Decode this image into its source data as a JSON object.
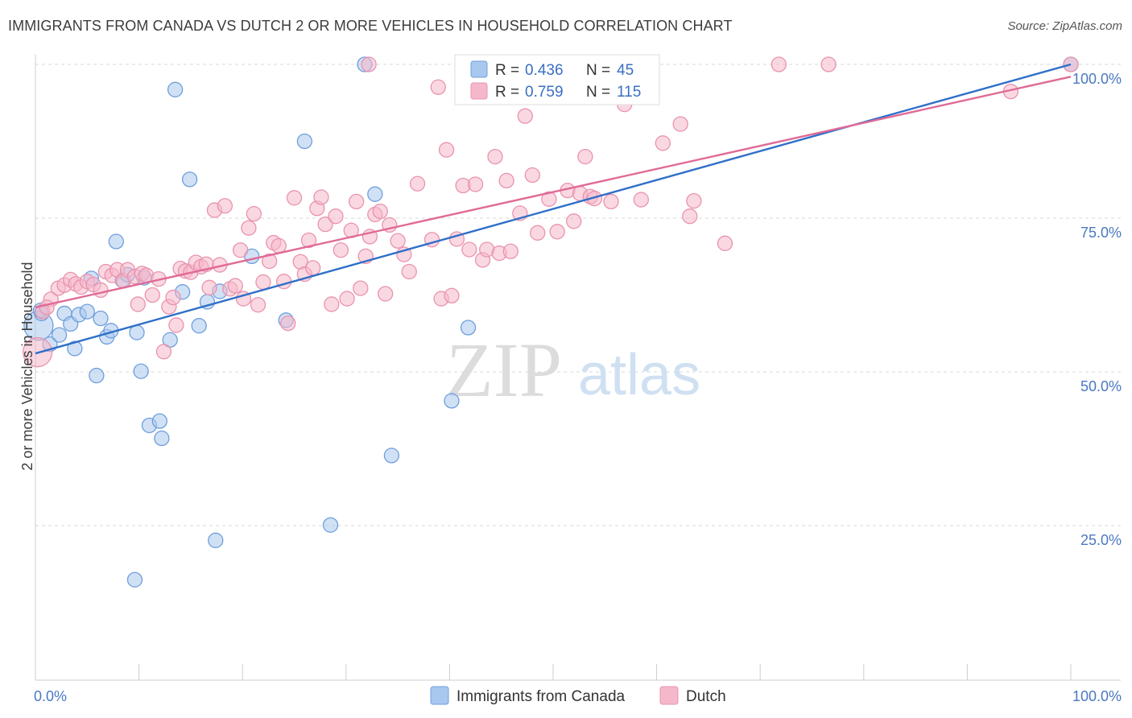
{
  "title": "IMMIGRANTS FROM CANADA VS DUTCH 2 OR MORE VEHICLES IN HOUSEHOLD CORRELATION CHART",
  "source": "Source: ZipAtlas.com",
  "watermark": {
    "zip": "ZIP",
    "atlas": "atlas"
  },
  "colors": {
    "series_a_fill": "#a9c8ef",
    "series_a_stroke": "#6f9fdc",
    "series_a_line": "#2f6fc8",
    "series_b_fill": "#f5b8cb",
    "series_b_stroke": "#e993ad",
    "series_b_line": "#e06a96",
    "grid": "#d8d8d8",
    "axis_label": "#4a78c2"
  },
  "legend": {
    "r_label": "R =",
    "n_label": "N =",
    "series": [
      {
        "r": "0.436",
        "n": "45"
      },
      {
        "r": "0.759",
        "n": "115"
      }
    ]
  },
  "chart_data": {
    "type": "scatter",
    "title": "IMMIGRANTS FROM CANADA VS DUTCH 2 OR MORE VEHICLES IN HOUSEHOLD CORRELATION CHART",
    "xlabel": "",
    "ylabel": "2 or more Vehicles in Household",
    "xlim": [
      0,
      100
    ],
    "ylim": [
      0,
      100
    ],
    "x_tick_labels": [
      "0.0%",
      "100.0%"
    ],
    "y_ticks": [
      25,
      50,
      75,
      100
    ],
    "y_tick_labels": [
      "25.0%",
      "50.0%",
      "75.0%",
      "100.0%"
    ],
    "grid": true,
    "legend_position": "top-center",
    "series": [
      {
        "name": "Immigrants from Canada",
        "r": 0.436,
        "n": 45,
        "trend": [
          [
            0,
            53
          ],
          [
            100,
            100
          ]
        ],
        "points": [
          [
            0.3,
            57.5,
            2
          ],
          [
            0.6,
            59.5,
            1
          ],
          [
            1.4,
            54.5,
            1
          ],
          [
            2.3,
            56,
            1
          ],
          [
            2.8,
            59.5,
            1
          ],
          [
            3.4,
            57.8,
            1
          ],
          [
            3.8,
            53.8,
            1
          ],
          [
            4.2,
            59.3,
            1
          ],
          [
            5.0,
            59.8,
            1
          ],
          [
            5.4,
            65.2,
            1
          ],
          [
            5.9,
            49.4,
            1
          ],
          [
            6.3,
            58.7,
            1
          ],
          [
            6.9,
            55.7,
            1
          ],
          [
            7.3,
            56.7,
            1
          ],
          [
            7.8,
            71.2,
            1
          ],
          [
            8.4,
            64.9,
            1
          ],
          [
            8.9,
            65.8,
            1
          ],
          [
            9.6,
            16.2,
            1
          ],
          [
            9.8,
            56.4,
            1
          ],
          [
            10.2,
            50.1,
            1
          ],
          [
            10.5,
            65.3,
            1
          ],
          [
            11.0,
            41.3,
            1
          ],
          [
            12.0,
            42.0,
            1
          ],
          [
            12.2,
            39.2,
            1
          ],
          [
            13.0,
            55.2,
            1
          ],
          [
            13.5,
            95.9,
            1
          ],
          [
            14.2,
            63.0,
            1
          ],
          [
            14.9,
            81.3,
            1
          ],
          [
            15.8,
            57.5,
            1
          ],
          [
            16.6,
            61.4,
            1
          ],
          [
            17.4,
            22.6,
            1
          ],
          [
            17.8,
            63.1,
            1
          ],
          [
            20.9,
            68.8,
            1
          ],
          [
            24.2,
            58.4,
            1
          ],
          [
            26.0,
            87.5,
            1
          ],
          [
            28.5,
            25.1,
            1
          ],
          [
            31.8,
            100.0,
            1
          ],
          [
            32.8,
            78.9,
            1
          ],
          [
            34.4,
            36.4,
            1
          ],
          [
            40.2,
            45.3,
            1
          ],
          [
            41.8,
            57.2,
            1
          ],
          [
            47.2,
            100.0,
            1
          ],
          [
            53.9,
            100.0,
            1
          ],
          [
            100.0,
            100.0,
            1
          ],
          [
            0.5,
            60.0,
            1
          ]
        ]
      },
      {
        "name": "Dutch",
        "r": 0.759,
        "n": 115,
        "trend": [
          [
            0,
            60.5
          ],
          [
            100,
            98
          ]
        ],
        "points": [
          [
            0.2,
            53.2,
            2
          ],
          [
            0.7,
            59.8,
            1
          ],
          [
            1.5,
            61.8,
            1
          ],
          [
            2.2,
            63.6,
            1
          ],
          [
            2.8,
            64.1,
            1
          ],
          [
            3.4,
            65.0,
            1
          ],
          [
            3.9,
            64.3,
            1
          ],
          [
            4.4,
            63.8,
            1
          ],
          [
            5.0,
            64.7,
            1
          ],
          [
            5.6,
            64.2,
            1
          ],
          [
            6.3,
            63.3,
            1
          ],
          [
            6.8,
            66.3,
            1
          ],
          [
            7.4,
            65.7,
            1
          ],
          [
            7.9,
            66.6,
            1
          ],
          [
            8.5,
            64.8,
            1
          ],
          [
            8.9,
            66.6,
            1
          ],
          [
            9.6,
            65.5,
            1
          ],
          [
            9.9,
            61.0,
            1
          ],
          [
            10.3,
            66.0,
            1
          ],
          [
            10.7,
            65.7,
            1
          ],
          [
            11.3,
            62.5,
            1
          ],
          [
            11.9,
            65.1,
            1
          ],
          [
            12.4,
            53.3,
            1
          ],
          [
            12.9,
            60.6,
            1
          ],
          [
            13.3,
            62.1,
            1
          ],
          [
            13.6,
            57.6,
            1
          ],
          [
            14.0,
            66.8,
            1
          ],
          [
            14.5,
            66.4,
            1
          ],
          [
            15.0,
            66.2,
            1
          ],
          [
            15.5,
            67.8,
            1
          ],
          [
            16.0,
            67.1,
            1
          ],
          [
            16.5,
            67.5,
            1
          ],
          [
            16.8,
            63.7,
            1
          ],
          [
            17.3,
            76.3,
            1
          ],
          [
            17.8,
            67.4,
            1
          ],
          [
            18.3,
            77.0,
            1
          ],
          [
            18.8,
            63.5,
            1
          ],
          [
            19.3,
            64.0,
            1
          ],
          [
            19.8,
            69.8,
            1
          ],
          [
            20.1,
            61.9,
            1
          ],
          [
            20.6,
            73.4,
            1
          ],
          [
            21.1,
            75.7,
            1
          ],
          [
            21.5,
            60.9,
            1
          ],
          [
            22.0,
            64.6,
            1
          ],
          [
            22.6,
            68.0,
            1
          ],
          [
            23.0,
            71.0,
            1
          ],
          [
            23.5,
            70.5,
            1
          ],
          [
            24.0,
            64.7,
            1
          ],
          [
            24.4,
            57.9,
            1
          ],
          [
            25.0,
            78.3,
            1
          ],
          [
            25.6,
            67.9,
            1
          ],
          [
            26.0,
            65.9,
            1
          ],
          [
            26.4,
            71.4,
            1
          ],
          [
            26.8,
            66.9,
            1
          ],
          [
            27.2,
            76.6,
            1
          ],
          [
            27.6,
            78.4,
            1
          ],
          [
            28.0,
            74.0,
            1
          ],
          [
            28.6,
            61.0,
            1
          ],
          [
            29.0,
            75.3,
            1
          ],
          [
            29.5,
            69.8,
            1
          ],
          [
            30.1,
            61.9,
            1
          ],
          [
            30.5,
            73.0,
            1
          ],
          [
            31.0,
            77.7,
            1
          ],
          [
            31.4,
            63.6,
            1
          ],
          [
            31.9,
            68.8,
            1
          ],
          [
            32.3,
            72.0,
            1
          ],
          [
            32.8,
            75.6,
            1
          ],
          [
            33.3,
            76.1,
            1
          ],
          [
            33.8,
            62.7,
            1
          ],
          [
            34.2,
            73.9,
            1
          ],
          [
            35.0,
            71.3,
            1
          ],
          [
            35.6,
            69.1,
            1
          ],
          [
            36.1,
            66.3,
            1
          ],
          [
            36.9,
            80.6,
            1
          ],
          [
            38.3,
            71.5,
            1
          ],
          [
            38.9,
            96.3,
            1
          ],
          [
            39.2,
            61.9,
            1
          ],
          [
            39.7,
            86.1,
            1
          ],
          [
            40.2,
            62.4,
            1
          ],
          [
            40.7,
            71.6,
            1
          ],
          [
            41.3,
            80.3,
            1
          ],
          [
            41.9,
            69.9,
            1
          ],
          [
            42.5,
            80.5,
            1
          ],
          [
            43.2,
            68.2,
            1
          ],
          [
            43.6,
            69.9,
            1
          ],
          [
            44.4,
            85.0,
            1
          ],
          [
            44.8,
            69.3,
            1
          ],
          [
            45.5,
            81.1,
            1
          ],
          [
            45.9,
            69.6,
            1
          ],
          [
            46.8,
            75.8,
            1
          ],
          [
            47.3,
            91.6,
            1
          ],
          [
            48.0,
            82.0,
            1
          ],
          [
            48.5,
            72.6,
            1
          ],
          [
            49.6,
            78.1,
            1
          ],
          [
            50.4,
            72.8,
            1
          ],
          [
            51.4,
            79.5,
            1
          ],
          [
            52.0,
            74.5,
            1
          ],
          [
            52.6,
            79.0,
            1
          ],
          [
            53.1,
            85.0,
            1
          ],
          [
            53.6,
            78.5,
            1
          ],
          [
            54.0,
            78.2,
            1
          ],
          [
            55.6,
            77.7,
            1
          ],
          [
            56.9,
            93.5,
            1
          ],
          [
            58.5,
            78.0,
            1
          ],
          [
            60.6,
            87.2,
            1
          ],
          [
            62.3,
            90.3,
            1
          ],
          [
            63.2,
            75.3,
            1
          ],
          [
            63.6,
            77.8,
            1
          ],
          [
            66.6,
            70.9,
            1
          ],
          [
            71.8,
            100.0,
            1
          ],
          [
            76.6,
            100.0,
            1
          ],
          [
            94.2,
            95.6,
            1
          ],
          [
            100.0,
            100.0,
            1
          ],
          [
            32.2,
            100.0,
            1
          ],
          [
            1.1,
            60.5,
            1
          ]
        ]
      }
    ]
  }
}
